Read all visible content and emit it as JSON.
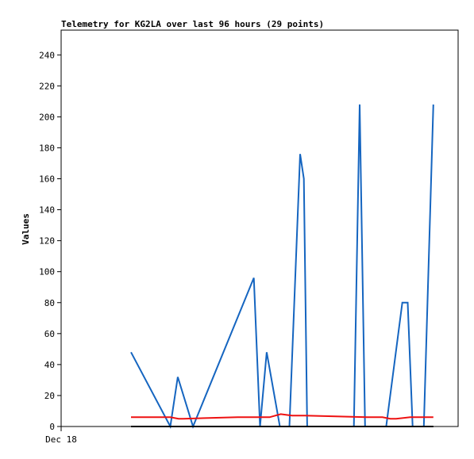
{
  "chart_data": {
    "type": "line",
    "title": "Telemetry for KG2LA over last 96 hours (29 points)",
    "xlabel": "",
    "ylabel": "Values",
    "x_tick_labels": [
      "Dec 18"
    ],
    "ylim": [
      0,
      256
    ],
    "yticks": [
      0,
      20,
      40,
      60,
      80,
      100,
      120,
      140,
      160,
      180,
      200,
      220,
      240
    ],
    "xlim": [
      0,
      96
    ],
    "grid": false,
    "legend": "none",
    "series": [
      {
        "color": "#1565c0",
        "x": [
          16.9,
          26.4,
          28.2,
          31.9,
          46.6,
          48.1,
          49.7,
          52.9,
          55.2,
          57.8,
          58.7,
          59.5,
          64.2,
          70.8,
          72.2,
          73.5,
          78.6,
          82.5,
          83.8,
          85.0,
          87.7,
          90.0
        ],
        "y": [
          48,
          0,
          32,
          0,
          96,
          0,
          48,
          0,
          0,
          176,
          160,
          0,
          0,
          0,
          208,
          0,
          0,
          80,
          80,
          0,
          0,
          208
        ]
      },
      {
        "color": "#ee1111",
        "x": [
          16.9,
          26.4,
          28.4,
          29.5,
          42.7,
          48.0,
          50.4,
          53.1,
          55.8,
          59.0,
          74.0,
          77.7,
          79.6,
          81.0,
          84.4,
          90.0
        ],
        "y": [
          6,
          6,
          5,
          5,
          6,
          6,
          6,
          8,
          7,
          7,
          6,
          6,
          5,
          5,
          6,
          6
        ]
      },
      {
        "color": "#000000",
        "x": [
          16.9,
          90.0
        ],
        "y": [
          0,
          0
        ]
      }
    ]
  }
}
